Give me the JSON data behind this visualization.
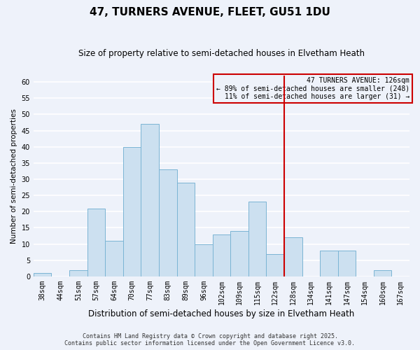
{
  "title": "47, TURNERS AVENUE, FLEET, GU51 1DU",
  "subtitle": "Size of property relative to semi-detached houses in Elvetham Heath",
  "xlabel": "Distribution of semi-detached houses by size in Elvetham Heath",
  "ylabel": "Number of semi-detached properties",
  "footer_line1": "Contains HM Land Registry data © Crown copyright and database right 2025.",
  "footer_line2": "Contains public sector information licensed under the Open Government Licence v3.0.",
  "bin_labels": [
    "38sqm",
    "44sqm",
    "51sqm",
    "57sqm",
    "64sqm",
    "70sqm",
    "77sqm",
    "83sqm",
    "89sqm",
    "96sqm",
    "102sqm",
    "109sqm",
    "115sqm",
    "122sqm",
    "128sqm",
    "134sqm",
    "141sqm",
    "147sqm",
    "154sqm",
    "160sqm",
    "167sqm"
  ],
  "bar_values": [
    1,
    0,
    2,
    21,
    11,
    40,
    47,
    33,
    29,
    10,
    13,
    14,
    23,
    7,
    12,
    0,
    8,
    8,
    0,
    2,
    0
  ],
  "bar_color": "#cce0f0",
  "bar_edge_color": "#7ab4d4",
  "background_color": "#eef2fa",
  "grid_color": "#ffffff",
  "vline_bin_index": 14,
  "vline_color": "#cc0000",
  "annotation_title": "47 TURNERS AVENUE: 126sqm",
  "annotation_line1": "← 89% of semi-detached houses are smaller (248)",
  "annotation_line2": "11% of semi-detached houses are larger (31) →",
  "annotation_box_color": "#cc0000",
  "ylim": [
    0,
    62
  ],
  "yticks": [
    0,
    5,
    10,
    15,
    20,
    25,
    30,
    35,
    40,
    45,
    50,
    55,
    60
  ],
  "title_fontsize": 11,
  "subtitle_fontsize": 8.5,
  "xlabel_fontsize": 8.5,
  "ylabel_fontsize": 7.5,
  "tick_fontsize": 7,
  "footer_fontsize": 6,
  "annotation_fontsize": 7
}
